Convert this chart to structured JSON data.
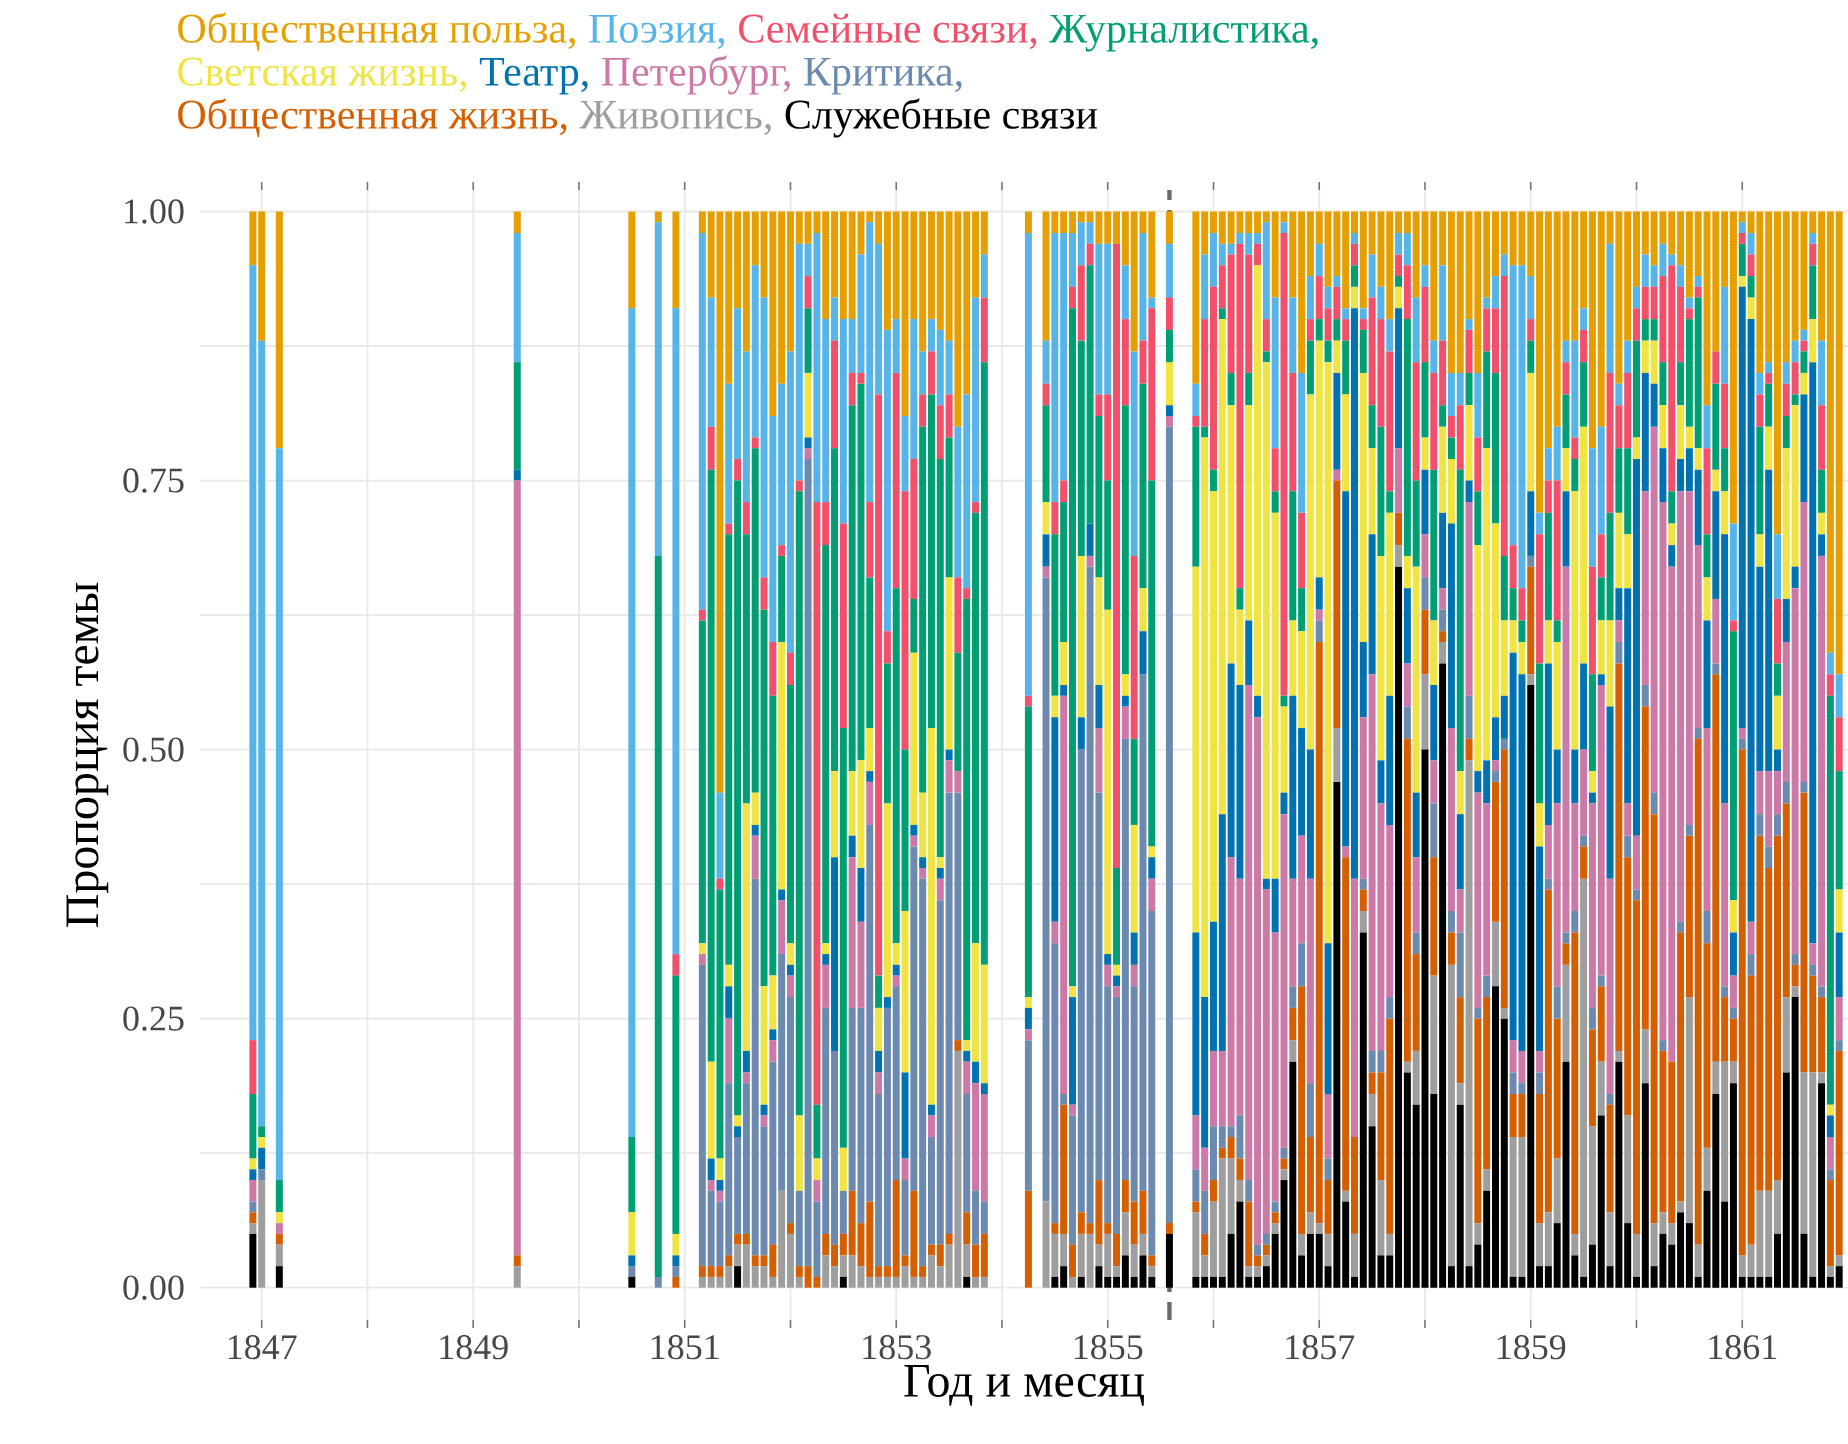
{
  "chart_data": {
    "type": "bar",
    "stacked": true,
    "xlabel": "Год и месяц",
    "ylabel": "Пропорция темы",
    "legend": "top",
    "grid": true,
    "x": [
      "1846-12",
      "1847-01",
      "1847-03",
      "1849-06",
      "1850-07",
      "1850-10",
      "1850-12",
      "1851-03",
      "1851-04",
      "1851-05",
      "1851-06",
      "1851-07",
      "1851-08",
      "1851-09",
      "1851-10",
      "1851-11",
      "1851-12",
      "1852-01",
      "1852-02",
      "1852-03",
      "1852-04",
      "1852-05",
      "1852-06",
      "1852-07",
      "1852-08",
      "1852-09",
      "1852-10",
      "1852-11",
      "1852-12",
      "1853-01",
      "1853-02",
      "1853-03",
      "1853-04",
      "1853-05",
      "1853-06",
      "1853-07",
      "1853-08",
      "1853-09",
      "1853-10",
      "1853-11",
      "1854-04",
      "1854-06",
      "1854-07",
      "1854-08",
      "1854-09",
      "1854-10",
      "1854-11",
      "1854-12",
      "1855-01",
      "1855-02",
      "1855-03",
      "1855-04",
      "1855-05",
      "1855-06",
      "1855-08",
      "1855-11",
      "1855-12",
      "1856-01",
      "1856-02",
      "1856-03",
      "1856-04",
      "1856-05",
      "1856-06",
      "1856-07",
      "1856-08",
      "1856-09",
      "1856-10",
      "1856-11",
      "1856-12",
      "1857-01",
      "1857-02",
      "1857-03",
      "1857-04",
      "1857-05",
      "1857-06",
      "1857-07",
      "1857-08",
      "1857-09",
      "1857-10",
      "1857-11",
      "1857-12",
      "1858-01",
      "1858-02",
      "1858-03",
      "1858-04",
      "1858-05",
      "1858-06",
      "1858-07",
      "1858-08",
      "1858-09",
      "1858-10",
      "1858-11",
      "1858-12",
      "1859-01",
      "1859-02",
      "1859-03",
      "1859-04",
      "1859-05",
      "1859-06",
      "1859-07",
      "1859-08",
      "1859-09",
      "1859-10",
      "1859-11",
      "1859-12",
      "1860-01",
      "1860-02",
      "1860-03",
      "1860-04",
      "1860-05",
      "1860-06",
      "1860-07",
      "1860-08",
      "1860-09",
      "1860-10",
      "1860-11",
      "1860-12",
      "1861-01",
      "1861-02",
      "1861-03",
      "1861-04",
      "1861-05",
      "1861-06",
      "1861-07",
      "1861-08",
      "1861-09",
      "1861-10",
      "1861-11",
      "1861-12"
    ],
    "xlim": [
      "1846-06",
      "1862-01"
    ],
    "xticks": [
      "1847",
      {
        "value": "1848",
        "label": null
      },
      "1849",
      {
        "value": "1850",
        "label": null
      },
      "1851",
      {
        "value": "1852",
        "label": null
      },
      "1853",
      {
        "value": "1854",
        "label": null
      },
      "1855",
      {
        "value": "1856",
        "label": null
      },
      "1857",
      {
        "value": "1858",
        "label": null
      },
      "1859",
      {
        "value": "1860",
        "label": null
      },
      "1861"
    ],
    "ylim": [
      -0.03,
      1.02
    ],
    "yticks": [
      {
        "value": 0,
        "label": "0.00"
      },
      {
        "value": 0.125,
        "label": null
      },
      {
        "value": 0.25,
        "label": "0.25"
      },
      {
        "value": 0.375,
        "label": null
      },
      {
        "value": 0.5,
        "label": "0.50"
      },
      {
        "value": 0.625,
        "label": null
      },
      {
        "value": 0.75,
        "label": "0.75"
      },
      {
        "value": 0.875,
        "label": null
      },
      {
        "value": 1,
        "label": "1.00"
      }
    ],
    "ref_lines": [
      {
        "axis": "x",
        "value": "1855-08",
        "color": "#6b6b6b",
        "line_style": "dashed"
      }
    ],
    "series": [
      {
        "name": "Служебные связи",
        "color": "#000000",
        "values": [
          0.05,
          0,
          0.02,
          0,
          0.01,
          0,
          0,
          0,
          0,
          0,
          0,
          0.02,
          0,
          0,
          0,
          0,
          0,
          0,
          0,
          0,
          0,
          0,
          0,
          0.01,
          0,
          0,
          0,
          0,
          0,
          0,
          0,
          0,
          0,
          0,
          0,
          0,
          0,
          0.01,
          0,
          0,
          0,
          0,
          0.01,
          0.02,
          0,
          0.01,
          0,
          0.02,
          0.01,
          0.01,
          0.03,
          0.01,
          0.03,
          0.01,
          0.05,
          0.01,
          0.01,
          0.01,
          0.01,
          0.05,
          0.08,
          0.01,
          0.01,
          0.02,
          0.05,
          0.1,
          0.21,
          0.03,
          0.05,
          0.05,
          0.02,
          0.47,
          0.08,
          0.01,
          0.33,
          0.15,
          0.03,
          0.03,
          0.67,
          0.2,
          0.17,
          0.5,
          0.18,
          0.58,
          0.02,
          0.17,
          0.02,
          0.04,
          0.09,
          0.28,
          0.25,
          0.01,
          0.01,
          0.56,
          0.02,
          0.02,
          0.06,
          0.21,
          0.03,
          0.01,
          0.04,
          0.16,
          0.02,
          0.21,
          0.06,
          0.01,
          0.19,
          0.02,
          0.05,
          0.04,
          0.07,
          0.06,
          0.01,
          0.09,
          0.18,
          0.08,
          0.19,
          0.01,
          0.01,
          0.01,
          0.01,
          0.05,
          0.2,
          0.27,
          0.05,
          0.01,
          0.19,
          0.01,
          0.02
        ]
      },
      {
        "name": "Живопись,",
        "color": "#9e9e9e",
        "values": [
          0.01,
          0.1,
          0.02,
          0.02,
          0,
          0,
          0,
          0.01,
          0.01,
          0.01,
          0.02,
          0.02,
          0.04,
          0.02,
          0.02,
          0.01,
          0.09,
          0.05,
          0.01,
          0,
          0,
          0.03,
          0.02,
          0.02,
          0.03,
          0.02,
          0.01,
          0.01,
          0.01,
          0.01,
          0.02,
          0.01,
          0.01,
          0.03,
          0.02,
          0.04,
          0.22,
          0.03,
          0.01,
          0.01,
          0,
          0.08,
          0.04,
          0.03,
          0.01,
          0.04,
          0.05,
          0.02,
          0.04,
          0.01,
          0.04,
          0.03,
          0.02,
          0.01,
          0,
          0.06,
          0.02,
          0.07,
          0.11,
          0.07,
          0.02,
          0.01,
          0.01,
          0.01,
          0.01,
          0.01,
          0.02,
          0.02,
          0.02,
          0.01,
          0.03,
          0.05,
          0.01,
          0.04,
          0.02,
          0.03,
          0.07,
          0.02,
          0.02,
          0.01,
          0.05,
          0.07,
          0.11,
          0.02,
          0.28,
          0.02,
          0.47,
          0.02,
          0.02,
          0.06,
          0.01,
          0.13,
          0.13,
          0.01,
          0.04,
          0.05,
          0.06,
          0.09,
          0.02,
          0.37,
          0.11,
          0.05,
          0.05,
          0.01,
          0.1,
          0.04,
          0.05,
          0.04,
          0.02,
          0.02,
          0.01,
          0.21,
          0.03,
          0.04,
          0.03,
          0.13,
          0.02,
          0.02,
          0.03,
          0.08,
          0.08,
          0.05,
          0.07,
          0.01,
          0.15,
          0.19,
          0.01,
          0.01,
          0.01
        ]
      },
      {
        "name": "Общественная жизнь,",
        "color": "#d55e00",
        "values": [
          0.01,
          0,
          0.01,
          0.01,
          0,
          0,
          0.01,
          0.01,
          0.01,
          0.01,
          0.01,
          0.01,
          0.01,
          0.01,
          0.01,
          0.03,
          0,
          0.01,
          0.01,
          0.02,
          0.01,
          0.02,
          0.02,
          0.02,
          0.06,
          0.04,
          0.07,
          0.01,
          0.01,
          0.09,
          0.01,
          0.08,
          0.01,
          0.01,
          0.02,
          0.01,
          0.01,
          0.03,
          0.03,
          0.04,
          0.09,
          0,
          0.01,
          0.12,
          0.03,
          0.02,
          0.01,
          0.06,
          0.01,
          0.03,
          0.03,
          0.04,
          0.04,
          0.01,
          0.01,
          0.01,
          0.02,
          0.02,
          0.01,
          0.02,
          0.02,
          0.06,
          0.01,
          0.01,
          0.01,
          0.01,
          0.03,
          0.23,
          0.07,
          0.54,
          0.05,
          0.23,
          0.31,
          0.09,
          0.02,
          0.02,
          0.1,
          0.2,
          0.03,
          0.3,
          0.09,
          0.06,
          0.11,
          0.01,
          0.03,
          0.08,
          0.02,
          0.19,
          0.16,
          0.13,
          0.24,
          0.04,
          0.04,
          0.1,
          0.12,
          0.3,
          0.13,
          0.02,
          0.28,
          0.03,
          0.09,
          0.07,
          0.1,
          0.36,
          0.24,
          0.31,
          0.3,
          0.38,
          0.15,
          0.15,
          0.25,
          0.15,
          0.47,
          0.19,
          0.36,
          0.06,
          0.04,
          0.47,
          0.25,
          0.33,
          0.3,
          0.32,
          0.18,
          0.02,
          0.26,
          0.09,
          0.07,
          0.08,
          0.19
        ]
      },
      {
        "name": "Критика,",
        "color": "#6c8ab0",
        "values": [
          0.01,
          0.01,
          0,
          0,
          0.01,
          0.01,
          0.01,
          0.28,
          0.07,
          0.06,
          0.16,
          0.09,
          0.14,
          0.35,
          0.12,
          0.17,
          0.22,
          0.21,
          0.07,
          0.75,
          0.07,
          0.21,
          0.18,
          0.04,
          0.17,
          0.2,
          0.35,
          0.16,
          0.24,
          0.18,
          0.07,
          0.32,
          0.36,
          0.1,
          0.32,
          0.41,
          0.23,
          0.11,
          0.05,
          0.03,
          0.14,
          0.58,
          0.26,
          0.01,
          0.12,
          0.43,
          0.61,
          0.36,
          0.22,
          0.22,
          0.41,
          0.2,
          0.48,
          0.32,
          0.74,
          0.03,
          0.04,
          0.05,
          0.02,
          0.01,
          0.04,
          0.02,
          0.01,
          0.01,
          0.01,
          0.01,
          0.02,
          0.04,
          0.05,
          0.02,
          0.02,
          0,
          0,
          0,
          0.01,
          0.02,
          0.02,
          0.02,
          0,
          0.03,
          0.02,
          0.03,
          0.05,
          0.02,
          0.02,
          0.06,
          0.04,
          0.01,
          0.02,
          0.01,
          0.01,
          0.02,
          0.01,
          0.01,
          0.02,
          0.01,
          0.03,
          0.01,
          0.02,
          0.01,
          0.02,
          0.01,
          0.01,
          0.02,
          0.02,
          0.01,
          0.02,
          0.02,
          0.01,
          0,
          0.01,
          0.01,
          0.01,
          0.03,
          0.01,
          0.01,
          0.01,
          0.01,
          0.02,
          0.02,
          0.02,
          0.02,
          0.02,
          0.01,
          0.01,
          0.01,
          0.01,
          0.01,
          0.01
        ]
      },
      {
        "name": "Петербург,",
        "color": "#cc79a7",
        "values": [
          0.02,
          0,
          0.01,
          0.72,
          0,
          0,
          0,
          0.01,
          0.01,
          0.01,
          0.06,
          0,
          0.01,
          0.04,
          0.01,
          0.02,
          0.05,
          0.02,
          0,
          0.01,
          0.02,
          0.04,
          0,
          0,
          0.14,
          0.08,
          0.04,
          0.02,
          0,
          0.01,
          0.02,
          0.01,
          0.01,
          0.02,
          0.02,
          0.03,
          0.02,
          0.03,
          0.1,
          0.1,
          0.01,
          0.01,
          0.02,
          0.37,
          0.01,
          0,
          0.01,
          0.06,
          0.02,
          0.01,
          0.03,
          0.02,
          0,
          0.03,
          0.01,
          0.05,
          0.04,
          0.07,
          0.07,
          0.25,
          0.22,
          0.46,
          0.49,
          0.32,
          0.25,
          0.31,
          0.1,
          0.1,
          0.19,
          0.01,
          0.06,
          0.01,
          0.01,
          0.24,
          0.15,
          0.35,
          0.23,
          0.16,
          0.06,
          0.04,
          0.07,
          0.04,
          0.04,
          0.02,
          0.17,
          0.04,
          0.18,
          0.2,
          0.16,
          0.01,
          0,
          0.03,
          0.03,
          0,
          0.02,
          0.05,
          0.17,
          0.34,
          0.1,
          0.08,
          0.19,
          0.27,
          0.2,
          0.02,
          0.03,
          0.05,
          0.18,
          0.34,
          0.5,
          0.46,
          0.4,
          0.31,
          0.17,
          0.17,
          0.06,
          0.17,
          0.03,
          0.01,
          0.03,
          0.04,
          0.07,
          0.04,
          0.13,
          0.34,
          0.26,
          0.02,
          0.4,
          0.03,
          0.04
        ]
      },
      {
        "name": "Театр,",
        "color": "#0072b2",
        "values": [
          0.01,
          0.02,
          0,
          0.01,
          0.01,
          0,
          0.01,
          0,
          0.02,
          0.01,
          0.03,
          0.01,
          0.02,
          0.01,
          0.01,
          0.01,
          0.01,
          0.01,
          0,
          0.01,
          0,
          0.01,
          0.18,
          0,
          0.02,
          0.05,
          0.01,
          0.02,
          0.01,
          0.01,
          0.08,
          0.01,
          0.01,
          0.01,
          0.01,
          0.01,
          0,
          0.01,
          0.02,
          0.01,
          0.02,
          0.03,
          0.19,
          0.01,
          0.1,
          0.03,
          0.03,
          0.04,
          0.01,
          0.01,
          0.01,
          0.03,
          0.04,
          0.02,
          0.01,
          0.17,
          0.14,
          0.12,
          0.22,
          0.18,
          0.18,
          0.06,
          0.02,
          0.01,
          0.05,
          0.02,
          0.17,
          0.1,
          0.12,
          0.03,
          0.14,
          0.09,
          0.33,
          0.53,
          0.07,
          0.13,
          0.04,
          0.12,
          0.13,
          0.07,
          0.06,
          0.06,
          0.07,
          0.07,
          0.19,
          0.07,
          0.02,
          0.02,
          0.04,
          0.04,
          0.04,
          0.36,
          0.35,
          0.06,
          0.19,
          0.15,
          0.05,
          0.07,
          0.05,
          0.08,
          0.01,
          0.01,
          0.16,
          0.03,
          0.2,
          0.35,
          0.11,
          0.04,
          0.05,
          0.02,
          0.03,
          0.04,
          0.07,
          0.1,
          0.1,
          0.25,
          0.04,
          0.41,
          0.56,
          0.19,
          0.28,
          0.02,
          0.04,
          0.02,
          0.1,
          0.54,
          0.02,
          0.02,
          0.06
        ]
      },
      {
        "name": "Светская жизнь,",
        "color": "#f0e442",
        "values": [
          0.01,
          0.01,
          0.01,
          0,
          0.04,
          0,
          0.02,
          0.01,
          0.09,
          0.02,
          0.02,
          0.01,
          0.23,
          0.03,
          0.11,
          0.05,
          0.23,
          0.02,
          0.07,
          0.06,
          0.02,
          0.01,
          0.08,
          0.04,
          0.06,
          0.1,
          0.04,
          0.04,
          0.18,
          0.02,
          0.15,
          0.16,
          0.06,
          0.35,
          0.01,
          0.16,
          0,
          0.01,
          0.11,
          0.11,
          0.01,
          0.03,
          0.02,
          0.04,
          0.01,
          0.15,
          0,
          0.1,
          0.32,
          0.01,
          0.02,
          0.1,
          0.04,
          0.01,
          0.04,
          0.34,
          0.52,
          0.4,
          0.46,
          0.24,
          0.07,
          0.2,
          0.4,
          0.48,
          0.34,
          0.08,
          0.07,
          0.09,
          0.33,
          0.22,
          0.54,
          0.03,
          0.09,
          0.02,
          0.25,
          0.08,
          0.19,
          0.17,
          0.02,
          0.03,
          0.21,
          0.03,
          0.06,
          0.08,
          0.06,
          0.04,
          0.07,
          0.21,
          0.29,
          0.18,
          0.07,
          0.03,
          0.03,
          0.11,
          0.04,
          0.04,
          0.1,
          0.04,
          0.24,
          0.22,
          0.02,
          0.05,
          0.08,
          0.07,
          0.05,
          0.02,
          0.03,
          0.04,
          0.04,
          0.02,
          0.05,
          0.02,
          0.02,
          0.04,
          0.02,
          0.04,
          0.03,
          0.01,
          0.02,
          0.03,
          0.04,
          0.05,
          0.14,
          0.15,
          0.02,
          0.04,
          0.02,
          0.01,
          0.04
        ]
      },
      {
        "name": "Журналистика,",
        "color": "#009e73",
        "values": [
          0.06,
          0.01,
          0.03,
          0.1,
          0.07,
          0.67,
          0.24,
          0.3,
          0.55,
          0.25,
          0.4,
          0.59,
          0.25,
          0.32,
          0.35,
          0.26,
          0.08,
          0.24,
          0.58,
          0.06,
          0.05,
          0.37,
          0.3,
          0.39,
          0.34,
          0.35,
          0.14,
          0.03,
          0.13,
          0.33,
          0.15,
          0.05,
          0.34,
          0.31,
          0.37,
          0.13,
          0.11,
          0.41,
          0.4,
          0.56,
          0.27,
          0.09,
          0.15,
          0.13,
          0.63,
          0.2,
          0.24,
          0.15,
          0.12,
          0.09,
          0.25,
          0.08,
          0.19,
          0.34,
          0.03,
          0.13,
          0.01,
          0.02,
          0.01,
          0.03,
          0.02,
          0.03,
          0,
          0.01,
          0.02,
          0.01,
          0.12,
          0.04,
          0.05,
          0.02,
          0.02,
          0.02,
          0.05,
          0.02,
          0.04,
          0.04,
          0.12,
          0.02,
          0.01,
          0.22,
          0.08,
          0.07,
          0.14,
          0.02,
          0.02,
          0.28,
          0.03,
          0.05,
          0.09,
          0.14,
          0.06,
          0.03,
          0.02,
          0.03,
          0.13,
          0.1,
          0.02,
          0.05,
          0.03,
          0.06,
          0.09,
          0.04,
          0.1,
          0.06,
          0.08,
          0.09,
          0.02,
          0.02,
          0.04,
          0.03,
          0.04,
          0.1,
          0.14,
          0.04,
          0.08,
          0.04,
          0.25,
          0.03,
          0.02,
          0.1,
          0.04,
          0.03,
          0.03,
          0.01,
          0.02,
          0.05,
          0.04,
          0.38,
          0.11
        ]
      },
      {
        "name": "Семейные связи,",
        "color": "#f2506a",
        "values": [
          0.05,
          0,
          0,
          0,
          0,
          0,
          0.02,
          0.01,
          0.04,
          0.01,
          0.01,
          0.02,
          0.03,
          0.01,
          0.03,
          0.05,
          0.01,
          0.03,
          0.01,
          0.03,
          0.56,
          0.04,
          0.1,
          0.19,
          0.03,
          0.01,
          0.07,
          0.54,
          0.03,
          0.2,
          0.24,
          0.13,
          0.03,
          0.04,
          0.05,
          0.04,
          0.07,
          0.01,
          0.01,
          0.06,
          0.01,
          0.02,
          0.03,
          0.02,
          0.02,
          0.07,
          0.02,
          0.02,
          0.08,
          0.58,
          0.08,
          0.17,
          0.04,
          0.16,
          0.03,
          0.01,
          0.1,
          0.17,
          0.04,
          0.11,
          0.32,
          0.11,
          0.02,
          0.03,
          0.04,
          0.43,
          0.11,
          0.07,
          0.02,
          0.04,
          0.03,
          0.03,
          0.02,
          0.02,
          0.01,
          0.1,
          0.1,
          0.13,
          0.02,
          0.05,
          0.11,
          0.07,
          0.09,
          0.06,
          0.02,
          0.06,
          0.04,
          0.05,
          0.04,
          0.06,
          0.26,
          0.04,
          0.03,
          0.02,
          0.12,
          0.03,
          0.13,
          0.03,
          0.02,
          0.03,
          0.1,
          0.04,
          0.13,
          0.04,
          0.07,
          0.03,
          0.03,
          0.03,
          0.08,
          0.21,
          0.07,
          0.01,
          0.01,
          0.08,
          0.03,
          0.06,
          0.01,
          0.01,
          0.02,
          0.03,
          0.01,
          0.06,
          0.03,
          0.03,
          0.01,
          0.02,
          0.06,
          0.02,
          0.05
        ]
      },
      {
        "name": "Поэзия,",
        "color": "#56b4e9",
        "values": [
          0.72,
          0.73,
          0.68,
          0.12,
          0.77,
          0.31,
          0.6,
          0.35,
          0.12,
          0.08,
          0.13,
          0.14,
          0.14,
          0.16,
          0.26,
          0.21,
          0.15,
          0.28,
          0.22,
          0.03,
          0.25,
          0.17,
          0.04,
          0.19,
          0.05,
          0.11,
          0.26,
          0.14,
          0.28,
          0.05,
          0.07,
          0.13,
          0.04,
          0.03,
          0.07,
          0.05,
          0.14,
          0.18,
          0.19,
          0.04,
          0.43,
          0.04,
          0.25,
          0.23,
          0.05,
          0.04,
          0.02,
          0.14,
          0.14,
          0,
          0.05,
          0.19,
          0.1,
          0.01,
          0.05,
          0.03,
          0.06,
          0.05,
          0.02,
          0.01,
          0.01,
          0.02,
          0.01,
          0.09,
          0.14,
          0.01,
          0.07,
          0.13,
          0.04,
          0.03,
          0.02,
          0.01,
          0.01,
          0.01,
          0.01,
          0.04,
          0.03,
          0.03,
          0.02,
          0.03,
          0.06,
          0.02,
          0.03,
          0.07,
          0.04,
          0.03,
          0.01,
          0.06,
          0.01,
          0.03,
          0.02,
          0.26,
          0.3,
          0.04,
          0.02,
          0.03,
          0.05,
          0.02,
          0.09,
          0.02,
          0.11,
          0.1,
          0.12,
          0.02,
          0.03,
          0.02,
          0.03,
          0.02,
          0.03,
          0.01,
          0.02,
          0.01,
          0.01,
          0.04,
          0,
          0.09,
          0.09,
          0.01,
          0.02,
          0.02,
          0.01,
          0.06,
          0.02,
          0.02,
          0.01,
          0.01,
          0.06,
          0.02,
          0.04
        ]
      },
      {
        "name": "Общественная польза,",
        "color": "#e69f00",
        "values": [
          0.05,
          0.12,
          0.22,
          0.02,
          0.09,
          0.01,
          0.09,
          0.02,
          0.08,
          0.54,
          0.16,
          0.09,
          0.13,
          0.05,
          0.08,
          0.19,
          0.16,
          0.13,
          0.03,
          0.03,
          0.02,
          0.1,
          0.08,
          0.1,
          0.1,
          0.04,
          0.01,
          0.03,
          0.11,
          0.1,
          0.19,
          0.1,
          0.13,
          0.1,
          0.11,
          0.12,
          0.2,
          0.17,
          0.08,
          0.04,
          0.02,
          0.12,
          0.02,
          0.02,
          0.02,
          0.01,
          0.01,
          0.03,
          0.03,
          0.03,
          0.05,
          0.13,
          0.02,
          0.08,
          0.03,
          0.16,
          0.04,
          0.02,
          0.03,
          0.03,
          0.02,
          0.02,
          0.02,
          0.01,
          0.08,
          0.01,
          0.08,
          0.15,
          0.06,
          0.03,
          0.07,
          0.06,
          0.09,
          0.02,
          0.09,
          0.04,
          0.07,
          0.1,
          0.02,
          0.02,
          0.08,
          0.05,
          0.12,
          0.05,
          0.15,
          0.15,
          0.1,
          0.15,
          0.08,
          0.06,
          0.04,
          0.05,
          0.05,
          0.06,
          0.28,
          0.22,
          0.2,
          0.12,
          0.12,
          0.09,
          0.22,
          0.2,
          0.03,
          0.16,
          0.12,
          0.07,
          0.04,
          0.05,
          0.03,
          0.04,
          0.05,
          0.08,
          0.06,
          0.18,
          0.13,
          0.07,
          0.29,
          0.01,
          0.02,
          0.15,
          0.14,
          0.3,
          0.14,
          0.12,
          0.11,
          0.02,
          0.12,
          0.41,
          0.43
        ]
      }
    ]
  }
}
